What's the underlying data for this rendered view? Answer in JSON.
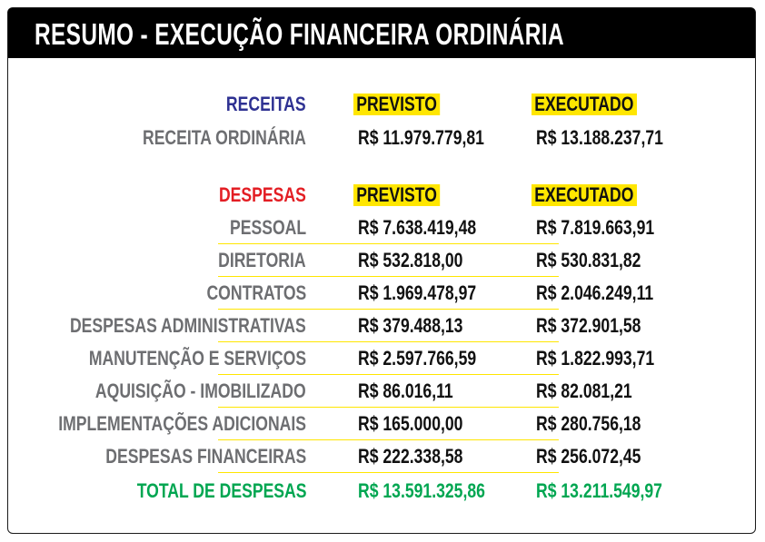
{
  "title": "RESUMO - EXECUÇÃO FINANCEIRA ORDINÁRIA",
  "colors": {
    "title_bg": "#000000",
    "highlight": "#ffe600",
    "receitas": "#2e3192",
    "despesas": "#e31e24",
    "total": "#00a651",
    "label": "#6d6e71"
  },
  "receitas": {
    "label": "RECEITAS",
    "col1": "PREVISTO",
    "col2": "EXECUTADO",
    "rows": [
      {
        "label": "RECEITA ORDINÁRIA",
        "previsto": "R$ 11.979.779,81",
        "executado": "R$ 13.188.237,71"
      }
    ]
  },
  "despesas": {
    "label": "DESPESAS",
    "col1": "PREVISTO",
    "col2": "EXECUTADO",
    "rows": [
      {
        "label": "PESSOAL",
        "previsto": "R$ 7.638.419,48",
        "executado": "R$ 7.819.663,91"
      },
      {
        "label": "DIRETORIA",
        "previsto": "R$ 532.818,00",
        "executado": "R$ 530.831,82"
      },
      {
        "label": "CONTRATOS",
        "previsto": "R$ 1.969.478,97",
        "executado": "R$ 2.046.249,11"
      },
      {
        "label": "DESPESAS ADMINISTRATIVAS",
        "previsto": "R$ 379.488,13",
        "executado": "R$ 372.901,58"
      },
      {
        "label": "MANUTENÇÃO E SERVIÇOS",
        "previsto": "R$ 2.597.766,59",
        "executado": "R$ 1.822.993,71"
      },
      {
        "label": "AQUISIÇÃO - IMOBILIZADO",
        "previsto": "R$ 86.016,11",
        "executado": "R$ 82.081,21"
      },
      {
        "label": "IMPLEMENTAÇÕES ADICIONAIS",
        "previsto": "R$ 165.000,00",
        "executado": "R$ 280.756,18"
      },
      {
        "label": "DESPESAS FINANCEIRAS",
        "previsto": "R$ 222.338,58",
        "executado": "R$ 256.072,45"
      }
    ],
    "total": {
      "label": "TOTAL DE DESPESAS",
      "previsto": "R$ 13.591.325,86",
      "executado": "R$ 13.211.549,97"
    }
  }
}
